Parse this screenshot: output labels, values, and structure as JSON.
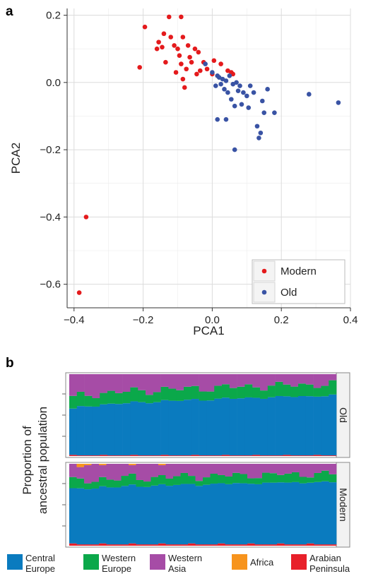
{
  "chart_data": [
    {
      "panel": "a",
      "type": "scatter",
      "title": "",
      "xlabel": "PCA1",
      "ylabel": "PCA2",
      "xlim": [
        -0.42,
        0.4
      ],
      "ylim": [
        -0.67,
        0.22
      ],
      "xticks": [
        "-0.4",
        "-0.2",
        "0.0",
        "0.2",
        "0.4"
      ],
      "yticks": [
        "0.2",
        "0.0",
        "-0.2",
        "-0.4",
        "-0.6"
      ],
      "xtick_values": [
        -0.4,
        -0.2,
        0.0,
        0.2,
        0.4
      ],
      "ytick_values": [
        0.2,
        0.0,
        -0.2,
        -0.4,
        -0.6
      ],
      "grid": true,
      "legend_position": "bottom-right",
      "series": [
        {
          "name": "Modern",
          "color": "#e41a1c",
          "points": [
            [
              -0.385,
              -0.625
            ],
            [
              -0.365,
              -0.4
            ],
            [
              -0.21,
              0.045
            ],
            [
              -0.195,
              0.165
            ],
            [
              -0.16,
              0.1
            ],
            [
              -0.155,
              0.12
            ],
            [
              -0.145,
              0.105
            ],
            [
              -0.14,
              0.145
            ],
            [
              -0.135,
              0.06
            ],
            [
              -0.125,
              0.195
            ],
            [
              -0.12,
              0.135
            ],
            [
              -0.11,
              0.11
            ],
            [
              -0.105,
              0.03
            ],
            [
              -0.1,
              0.1
            ],
            [
              -0.095,
              0.08
            ],
            [
              -0.09,
              0.195
            ],
            [
              -0.09,
              0.055
            ],
            [
              -0.085,
              0.135
            ],
            [
              -0.085,
              0.01
            ],
            [
              -0.08,
              -0.015
            ],
            [
              -0.075,
              0.04
            ],
            [
              -0.07,
              0.11
            ],
            [
              -0.065,
              0.075
            ],
            [
              -0.06,
              0.06
            ],
            [
              -0.05,
              0.1
            ],
            [
              -0.045,
              0.025
            ],
            [
              -0.04,
              0.09
            ],
            [
              -0.035,
              0.035
            ],
            [
              -0.025,
              0.06
            ],
            [
              -0.015,
              0.04
            ],
            [
              0.0,
              0.025
            ],
            [
              0.005,
              0.065
            ],
            [
              0.025,
              0.055
            ],
            [
              0.045,
              0.035
            ],
            [
              0.055,
              0.03
            ],
            [
              0.06,
              0.025
            ]
          ]
        },
        {
          "name": "Old",
          "color": "#3953a4",
          "points": [
            [
              -0.02,
              0.055
            ],
            [
              0.0,
              0.03
            ],
            [
              0.01,
              -0.01
            ],
            [
              0.015,
              0.02
            ],
            [
              0.02,
              0.015
            ],
            [
              0.025,
              -0.005
            ],
            [
              0.03,
              0.01
            ],
            [
              0.035,
              -0.02
            ],
            [
              0.04,
              0.005
            ],
            [
              0.045,
              -0.03
            ],
            [
              0.05,
              0.02
            ],
            [
              0.055,
              -0.05
            ],
            [
              0.06,
              -0.005
            ],
            [
              0.065,
              -0.07
            ],
            [
              0.07,
              0.0
            ],
            [
              0.075,
              -0.025
            ],
            [
              0.08,
              -0.01
            ],
            [
              0.085,
              -0.065
            ],
            [
              0.09,
              -0.03
            ],
            [
              0.1,
              -0.04
            ],
            [
              0.105,
              -0.075
            ],
            [
              0.11,
              -0.01
            ],
            [
              0.12,
              -0.03
            ],
            [
              0.13,
              -0.13
            ],
            [
              0.135,
              -0.165
            ],
            [
              0.14,
              -0.15
            ],
            [
              0.145,
              -0.055
            ],
            [
              0.15,
              -0.09
            ],
            [
              0.16,
              -0.02
            ],
            [
              0.18,
              -0.09
            ],
            [
              0.28,
              -0.035
            ],
            [
              0.365,
              -0.06
            ],
            [
              0.015,
              -0.11
            ],
            [
              0.04,
              -0.11
            ],
            [
              0.065,
              -0.2
            ]
          ]
        }
      ]
    },
    {
      "panel": "b",
      "type": "bar",
      "subtype": "stacked-100",
      "title": "",
      "ylabel": "Proportion of ancestral population",
      "xlabel": "",
      "grid": true,
      "legend_position": "bottom",
      "components": [
        {
          "name": "Central Europe",
          "label_lines": [
            "Central",
            "Europe"
          ],
          "color": "#0a7bbf"
        },
        {
          "name": "Western Europe",
          "label_lines": [
            "Western",
            "Europe"
          ],
          "color": "#0ba84a"
        },
        {
          "name": "Western Asia",
          "label_lines": [
            "Western",
            "Asia"
          ],
          "color": "#a64ca6"
        },
        {
          "name": "Africa",
          "label_lines": [
            "Africa"
          ],
          "color": "#f7941d"
        },
        {
          "name": "Arabian Peninsula",
          "label_lines": [
            "Arabian",
            "Peninsula"
          ],
          "color": "#e8202a"
        }
      ],
      "facets": [
        {
          "strip_label": "Old",
          "samples": 35,
          "central_europe_start": 0.56,
          "central_europe_end": 0.73,
          "western_europe_mean": 0.14,
          "western_asia": "remainder",
          "arabian_peninsula_mean": 0.01
        },
        {
          "strip_label": "Modern",
          "samples": 36,
          "central_europe_start": 0.66,
          "central_europe_end": 0.76,
          "western_europe_mean": 0.1,
          "western_asia": "remainder",
          "africa_max": 0.04,
          "arabian_peninsula_mean": 0.02
        }
      ]
    }
  ],
  "figure": {
    "panel_a_letter": "a",
    "panel_b_letter": "b"
  }
}
